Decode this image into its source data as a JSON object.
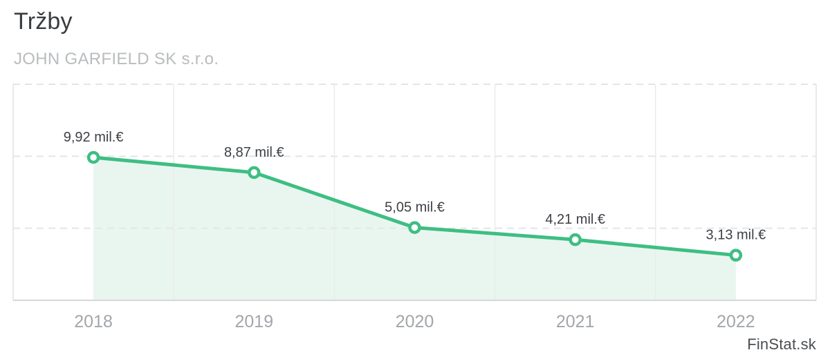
{
  "header": {
    "title": "Tržby",
    "subtitle": "JOHN GARFIELD SK s.r.o."
  },
  "watermark": "FinStat.sk",
  "chart_data": {
    "type": "line",
    "title": "Tržby",
    "subtitle": "JOHN GARFIELD SK s.r.o.",
    "categories": [
      "2018",
      "2019",
      "2020",
      "2021",
      "2022"
    ],
    "series": [
      {
        "name": "Tržby",
        "values": [
          9.92,
          8.87,
          5.05,
          4.21,
          3.13
        ],
        "point_labels": [
          "9,92 mil.€",
          "8,87 mil.€",
          "5,05 mil.€",
          "4,21 mil.€",
          "3,13 mil.€"
        ]
      }
    ],
    "unit": "mil.€",
    "xlabel": "",
    "ylabel": "",
    "ylim": [
      0,
      15
    ],
    "grid_step": 5,
    "grid": true,
    "legend": false,
    "y_tick_labels_visible": false,
    "colors": {
      "line": "#3ebe83",
      "marker_fill": "#ffffff",
      "area_fill": "#e9f6f0",
      "grid_dashed": "#e2e5e8",
      "grid_vertical": "#e9eceb",
      "plot_border": "#dfe2e4",
      "axis_line": "#d5d8db",
      "value_label": "#3d4045",
      "tick_label": "#a2a6aa"
    }
  }
}
